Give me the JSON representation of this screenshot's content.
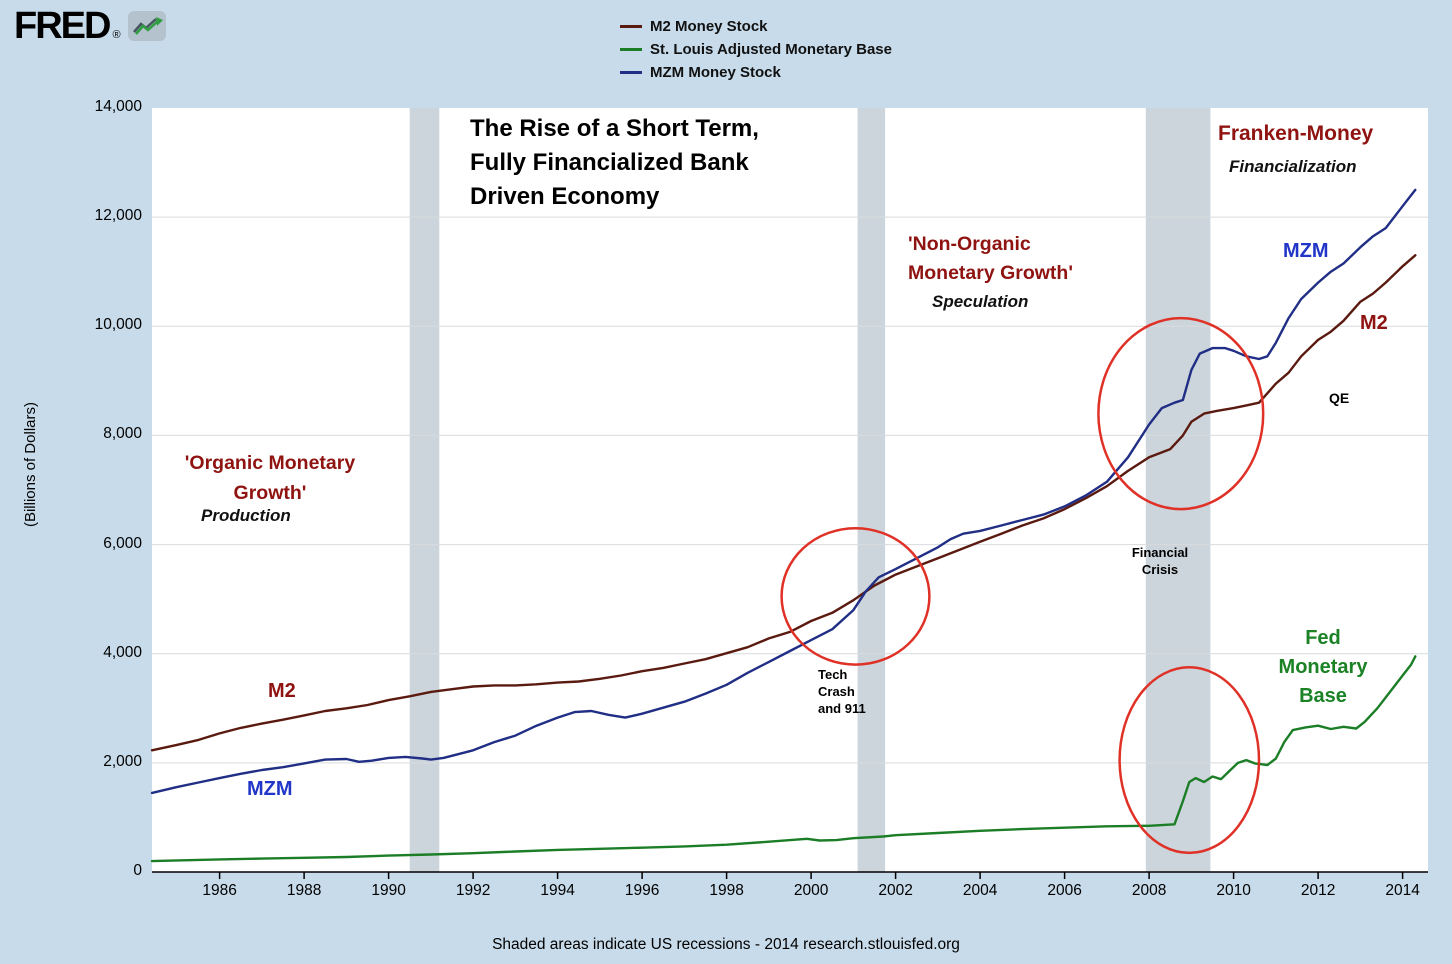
{
  "logo": {
    "text": "FRED",
    "registered": "®"
  },
  "legend": {
    "items": [
      {
        "label": "M2 Money Stock",
        "color": "#5a1a10"
      },
      {
        "label": "St. Louis Adjusted Monetary Base",
        "color": "#1b7e26"
      },
      {
        "label": "MZM Money Stock",
        "color": "#202e85"
      }
    ]
  },
  "y_axis": {
    "title": "(Billions of Dollars)"
  },
  "footer": {
    "caption": "Shaded areas indicate US recessions - 2014 research.stlouisfed.org"
  },
  "annotations": {
    "chart_title": "The Rise of a Short Term,\nFully Financialized Bank\nDriven Economy",
    "franken_money": "Franken-Money",
    "financialization": "Financialization",
    "non_organic": "'Non-Organic\nMonetary Growth'",
    "speculation": "Speculation",
    "organic": "'Organic Monetary\nGrowth'",
    "production": "Production",
    "m2_left": "M2",
    "mzm_left": "MZM",
    "mzm_right": "MZM",
    "m2_right": "M2",
    "fed_base": "Fed\nMonetary\nBase",
    "qe": "QE",
    "tech_crash": "Tech\nCrash\nand 911",
    "financial_crisis": "Financial\nCrisis"
  },
  "colors": {
    "background": "#c7dbea",
    "plot_background": "#ffffff",
    "recession_band": "#ccd5db",
    "gridline": "#d7dbde",
    "ellipse_red": "#e03127",
    "annotation_red": "#8f1310",
    "annotation_blue": "#2135c8",
    "annotation_green": "#1b8226",
    "axis_text": "#000000"
  },
  "chart_data": {
    "type": "line",
    "x_domain": [
      1984.4,
      2014.6
    ],
    "y_domain": [
      0,
      14000
    ],
    "x_ticks": [
      1986,
      1988,
      1990,
      1992,
      1994,
      1996,
      1998,
      2000,
      2002,
      2004,
      2006,
      2008,
      2010,
      2012,
      2014
    ],
    "y_ticks": [
      0,
      2000,
      4000,
      6000,
      8000,
      10000,
      12000,
      14000
    ],
    "y_tick_labels": [
      "0",
      "2,000",
      "4,000",
      "6,000",
      "8,000",
      "10,000",
      "12,000",
      "14,000"
    ],
    "grid": true,
    "legend_position": "top-center",
    "recession_bands": [
      [
        1990.5,
        1991.2
      ],
      [
        2001.1,
        2001.75
      ],
      [
        2007.92,
        2009.45
      ]
    ],
    "ellipses": [
      {
        "cx": 2001.05,
        "cy": 5050,
        "rx": 1.75,
        "ry": 1250
      },
      {
        "cx": 2008.75,
        "cy": 8400,
        "rx": 1.95,
        "ry": 1750
      },
      {
        "cx": 2008.95,
        "cy": 2050,
        "rx": 1.65,
        "ry": 1700
      }
    ],
    "series": [
      {
        "id": "monetary-base",
        "name": "St. Louis Adjusted Monetary Base",
        "color": "#1b7e26",
        "points": [
          [
            1984.4,
            200
          ],
          [
            1986,
            230
          ],
          [
            1987,
            245
          ],
          [
            1988,
            260
          ],
          [
            1989,
            275
          ],
          [
            1990,
            300
          ],
          [
            1991,
            320
          ],
          [
            1992,
            345
          ],
          [
            1993,
            375
          ],
          [
            1994,
            405
          ],
          [
            1995,
            425
          ],
          [
            1996,
            445
          ],
          [
            1997,
            470
          ],
          [
            1998,
            500
          ],
          [
            1999,
            555
          ],
          [
            1999.9,
            608
          ],
          [
            2000.2,
            578
          ],
          [
            2000.6,
            585
          ],
          [
            2001,
            620
          ],
          [
            2001.7,
            650
          ],
          [
            2002,
            675
          ],
          [
            2003,
            715
          ],
          [
            2004,
            755
          ],
          [
            2005,
            787
          ],
          [
            2006,
            812
          ],
          [
            2007,
            837
          ],
          [
            2008,
            847
          ],
          [
            2008.6,
            875
          ],
          [
            2008.8,
            1300
          ],
          [
            2008.95,
            1650
          ],
          [
            2009.1,
            1720
          ],
          [
            2009.3,
            1650
          ],
          [
            2009.5,
            1750
          ],
          [
            2009.7,
            1700
          ],
          [
            2009.9,
            1850
          ],
          [
            2010.1,
            2000
          ],
          [
            2010.3,
            2050
          ],
          [
            2010.5,
            1990
          ],
          [
            2010.8,
            1960
          ],
          [
            2011,
            2080
          ],
          [
            2011.2,
            2380
          ],
          [
            2011.4,
            2600
          ],
          [
            2011.7,
            2650
          ],
          [
            2012,
            2680
          ],
          [
            2012.3,
            2620
          ],
          [
            2012.6,
            2660
          ],
          [
            2012.9,
            2630
          ],
          [
            2013.1,
            2750
          ],
          [
            2013.4,
            3000
          ],
          [
            2013.7,
            3300
          ],
          [
            2014,
            3600
          ],
          [
            2014.2,
            3800
          ],
          [
            2014.3,
            3950
          ]
        ]
      },
      {
        "id": "m2",
        "name": "M2 Money Stock",
        "color": "#5a1a10",
        "points": [
          [
            1984.4,
            2230
          ],
          [
            1985,
            2330
          ],
          [
            1985.5,
            2420
          ],
          [
            1986,
            2540
          ],
          [
            1986.5,
            2640
          ],
          [
            1987,
            2720
          ],
          [
            1987.5,
            2790
          ],
          [
            1988,
            2870
          ],
          [
            1988.5,
            2950
          ],
          [
            1989,
            3000
          ],
          [
            1989.5,
            3060
          ],
          [
            1990,
            3150
          ],
          [
            1990.5,
            3220
          ],
          [
            1991,
            3300
          ],
          [
            1991.5,
            3350
          ],
          [
            1992,
            3400
          ],
          [
            1992.5,
            3420
          ],
          [
            1993,
            3420
          ],
          [
            1993.5,
            3440
          ],
          [
            1994,
            3470
          ],
          [
            1994.5,
            3490
          ],
          [
            1995,
            3540
          ],
          [
            1995.5,
            3600
          ],
          [
            1996,
            3680
          ],
          [
            1996.5,
            3740
          ],
          [
            1997,
            3820
          ],
          [
            1997.5,
            3900
          ],
          [
            1998,
            4010
          ],
          [
            1998.5,
            4120
          ],
          [
            1999,
            4280
          ],
          [
            1999.5,
            4400
          ],
          [
            2000,
            4600
          ],
          [
            2000.5,
            4750
          ],
          [
            2001,
            4980
          ],
          [
            2001.5,
            5250
          ],
          [
            2002,
            5450
          ],
          [
            2002.5,
            5600
          ],
          [
            2003,
            5750
          ],
          [
            2003.5,
            5900
          ],
          [
            2004,
            6050
          ],
          [
            2004.5,
            6200
          ],
          [
            2005,
            6350
          ],
          [
            2005.5,
            6480
          ],
          [
            2006,
            6650
          ],
          [
            2006.5,
            6850
          ],
          [
            2007,
            7070
          ],
          [
            2007.5,
            7350
          ],
          [
            2008,
            7600
          ],
          [
            2008.5,
            7750
          ],
          [
            2008.8,
            8000
          ],
          [
            2009,
            8250
          ],
          [
            2009.3,
            8400
          ],
          [
            2009.6,
            8450
          ],
          [
            2010,
            8500
          ],
          [
            2010.3,
            8550
          ],
          [
            2010.6,
            8600
          ],
          [
            2011,
            8950
          ],
          [
            2011.3,
            9150
          ],
          [
            2011.6,
            9450
          ],
          [
            2012,
            9750
          ],
          [
            2012.3,
            9900
          ],
          [
            2012.6,
            10100
          ],
          [
            2013,
            10450
          ],
          [
            2013.3,
            10600
          ],
          [
            2013.6,
            10800
          ],
          [
            2014,
            11100
          ],
          [
            2014.3,
            11300
          ]
        ]
      },
      {
        "id": "mzm",
        "name": "MZM Money Stock",
        "color": "#202e85",
        "points": [
          [
            1984.4,
            1450
          ],
          [
            1985,
            1560
          ],
          [
            1985.5,
            1640
          ],
          [
            1986,
            1720
          ],
          [
            1986.5,
            1800
          ],
          [
            1987,
            1870
          ],
          [
            1987.5,
            1920
          ],
          [
            1988,
            1990
          ],
          [
            1988.5,
            2060
          ],
          [
            1989,
            2070
          ],
          [
            1989.3,
            2020
          ],
          [
            1989.6,
            2040
          ],
          [
            1990,
            2090
          ],
          [
            1990.4,
            2110
          ],
          [
            1990.8,
            2080
          ],
          [
            1991,
            2060
          ],
          [
            1991.3,
            2090
          ],
          [
            1991.6,
            2150
          ],
          [
            1992,
            2230
          ],
          [
            1992.5,
            2380
          ],
          [
            1993,
            2500
          ],
          [
            1993.5,
            2680
          ],
          [
            1994,
            2830
          ],
          [
            1994.4,
            2930
          ],
          [
            1994.8,
            2950
          ],
          [
            1995.2,
            2880
          ],
          [
            1995.6,
            2830
          ],
          [
            1996,
            2900
          ],
          [
            1996.5,
            3010
          ],
          [
            1997,
            3120
          ],
          [
            1997.5,
            3270
          ],
          [
            1998,
            3430
          ],
          [
            1998.5,
            3650
          ],
          [
            1999,
            3850
          ],
          [
            1999.5,
            4050
          ],
          [
            2000,
            4250
          ],
          [
            2000.5,
            4450
          ],
          [
            2001,
            4800
          ],
          [
            2001.3,
            5150
          ],
          [
            2001.6,
            5400
          ],
          [
            2002,
            5550
          ],
          [
            2002.5,
            5750
          ],
          [
            2003,
            5950
          ],
          [
            2003.3,
            6100
          ],
          [
            2003.6,
            6200
          ],
          [
            2004,
            6250
          ],
          [
            2004.5,
            6350
          ],
          [
            2005,
            6450
          ],
          [
            2005.5,
            6550
          ],
          [
            2006,
            6700
          ],
          [
            2006.5,
            6900
          ],
          [
            2007,
            7150
          ],
          [
            2007.5,
            7600
          ],
          [
            2008,
            8200
          ],
          [
            2008.3,
            8500
          ],
          [
            2008.6,
            8600
          ],
          [
            2008.8,
            8650
          ],
          [
            2009,
            9200
          ],
          [
            2009.2,
            9500
          ],
          [
            2009.5,
            9600
          ],
          [
            2009.8,
            9600
          ],
          [
            2010,
            9550
          ],
          [
            2010.3,
            9450
          ],
          [
            2010.6,
            9400
          ],
          [
            2010.8,
            9450
          ],
          [
            2011,
            9700
          ],
          [
            2011.3,
            10150
          ],
          [
            2011.6,
            10500
          ],
          [
            2012,
            10800
          ],
          [
            2012.3,
            11000
          ],
          [
            2012.6,
            11150
          ],
          [
            2013,
            11450
          ],
          [
            2013.3,
            11650
          ],
          [
            2013.6,
            11800
          ],
          [
            2014,
            12200
          ],
          [
            2014.2,
            12400
          ],
          [
            2014.3,
            12500
          ]
        ]
      }
    ]
  }
}
